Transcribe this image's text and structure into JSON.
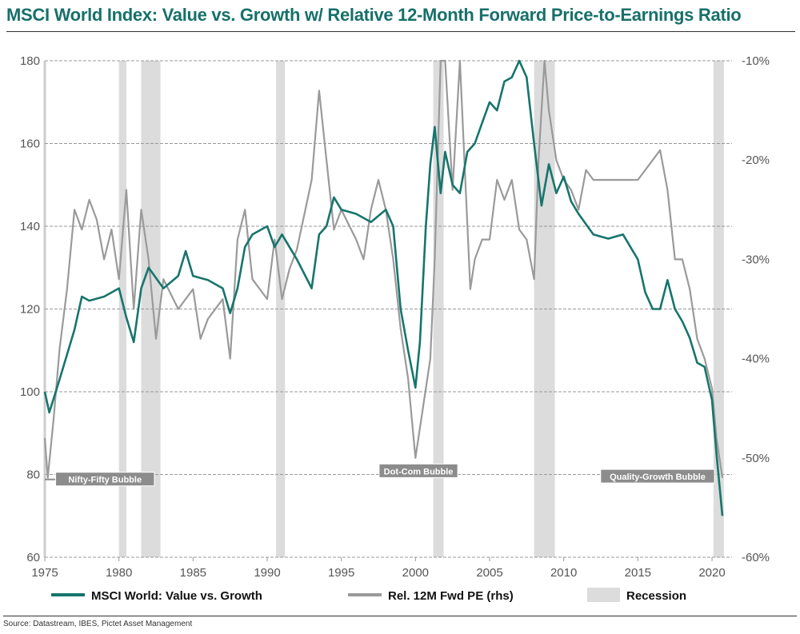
{
  "chart_data": {
    "type": "line",
    "title": "MSCI World Index: Value vs. Growth w/ Relative 12-Month Forward Price-to-Earnings Ratio",
    "source": "Source: Datastream, IBES, Pictet Asset Management",
    "xlim": [
      1975,
      2021.2
    ],
    "x_ticks": [
      "1975",
      "1980",
      "1985",
      "1990",
      "1995",
      "2000",
      "2005",
      "2010",
      "2015",
      "2020"
    ],
    "ylim_left": [
      60,
      180
    ],
    "y_ticks_left": [
      "60",
      "80",
      "100",
      "120",
      "140",
      "160",
      "180"
    ],
    "ylim_right": [
      -60,
      -10
    ],
    "y_ticks_right": [
      "-60%",
      "-50%",
      "-40%",
      "-30%",
      "-20%",
      "-10%"
    ],
    "grid": "horizontal dashed",
    "legend_placement": "bottom",
    "colors": {
      "value_vs_growth": "#17756d",
      "rel_pe": "#9a9a9a",
      "recession": "#dcdcdc",
      "annotation": "#8c8c8c",
      "title": "#17706a"
    },
    "recessions": [
      [
        1980.0,
        1980.5
      ],
      [
        1981.5,
        1982.8
      ],
      [
        1990.6,
        1991.2
      ],
      [
        2001.2,
        2001.9
      ],
      [
        2008.0,
        2009.4
      ],
      [
        2020.1,
        2020.8
      ]
    ],
    "annotations": [
      {
        "label": "Nifty-Fifty Bubble",
        "x": 1975.3,
        "y": 78.8
      },
      {
        "label": "Dot-Com Bubble",
        "x": 2000.2,
        "y": 80.8
      },
      {
        "label": "Quality-Growth Bubble",
        "x": 2020.6,
        "y": 79.5
      }
    ],
    "series": [
      {
        "name": "MSCI World: Value vs. Growth",
        "axis": "left",
        "x": [
          1975,
          1975.3,
          1976,
          1977,
          1977.5,
          1978,
          1979,
          1980,
          1980.5,
          1981,
          1981.5,
          1982,
          1983,
          1984,
          1984.5,
          1985,
          1986,
          1987,
          1987.5,
          1988,
          1988.5,
          1989,
          1990,
          1990.5,
          1991,
          1992,
          1993,
          1993.5,
          1994,
          1994.5,
          1995,
          1996,
          1997,
          1998,
          1998.5,
          1999,
          1999.5,
          2000,
          2000.3,
          2000.7,
          2001,
          2001.3,
          2001.7,
          2002,
          2002.5,
          2003,
          2003.5,
          2004,
          2004.5,
          2005,
          2005.5,
          2006,
          2006.5,
          2007,
          2007.5,
          2008,
          2008.5,
          2009,
          2009.5,
          2010,
          2010.5,
          2011,
          2012,
          2013,
          2014,
          2015,
          2015.5,
          2016,
          2016.5,
          2017,
          2017.5,
          2018,
          2018.5,
          2019,
          2019.5,
          2020,
          2020.3,
          2020.7
        ],
        "values": [
          100,
          95,
          103,
          115,
          123,
          122,
          123,
          125,
          118,
          112,
          125,
          130,
          125,
          128,
          134,
          128,
          127,
          125,
          119,
          125,
          135,
          138,
          140,
          135,
          138,
          132,
          125,
          138,
          140,
          147,
          144,
          143,
          141,
          144,
          140,
          120,
          110,
          101,
          112,
          140,
          155,
          164,
          148,
          158,
          150,
          148,
          158,
          160,
          165,
          170,
          168,
          175,
          176,
          180,
          176,
          160,
          145,
          155,
          148,
          152,
          146,
          143,
          138,
          137,
          138,
          132,
          124,
          120,
          120,
          127,
          120,
          117,
          113,
          107,
          106,
          98,
          85,
          70
        ]
      },
      {
        "name": "Rel. 12M Fwd PE (rhs)",
        "axis": "right",
        "x": [
          1975,
          1975.2,
          1975.6,
          1976,
          1976.5,
          1977,
          1977.5,
          1978,
          1978.5,
          1979,
          1979.5,
          1980,
          1980.5,
          1981,
          1981.5,
          1982,
          1982.5,
          1983,
          1984,
          1985,
          1985.5,
          1986,
          1987,
          1987.5,
          1988,
          1988.5,
          1989,
          1990,
          1990.5,
          1991,
          1991.5,
          1992,
          1993,
          1993.5,
          1994,
          1994.5,
          1995,
          1996,
          1996.5,
          1997,
          1997.5,
          1998,
          1998.5,
          1999,
          1999.5,
          2000,
          2000.5,
          2001,
          2001.3,
          2001.7,
          2002,
          2002.5,
          2003,
          2003.3,
          2003.7,
          2004,
          2004.5,
          2005,
          2005.5,
          2006,
          2006.5,
          2007,
          2007.5,
          2008,
          2008.3,
          2008.7,
          2009,
          2009.5,
          2010,
          2010.5,
          2011,
          2011.5,
          2012,
          2013,
          2014,
          2015,
          2016,
          2016.5,
          2017,
          2017.5,
          2018,
          2018.5,
          2019,
          2019.5,
          2020,
          2020.3,
          2020.7
        ],
        "values": [
          -48,
          -52,
          -46,
          -39,
          -33,
          -25,
          -27,
          -24,
          -26,
          -30,
          -27,
          -32,
          -23,
          -35,
          -25,
          -30,
          -38,
          -32,
          -35,
          -33,
          -38,
          -36,
          -34,
          -40,
          -28,
          -25,
          -32,
          -34,
          -28,
          -34,
          -31,
          -29,
          -22,
          -13,
          -20,
          -27,
          -25,
          -28,
          -30,
          -25,
          -22,
          -25,
          -30,
          -37,
          -42,
          -50,
          -45,
          -40,
          -30,
          -10,
          -10,
          -23,
          -10,
          -20,
          -33,
          -30,
          -28,
          -28,
          -22,
          -24,
          -22,
          -27,
          -28,
          -32,
          -20,
          -10,
          -15,
          -20,
          -22,
          -23,
          -25,
          -21,
          -22,
          -22,
          -22,
          -22,
          -20,
          -19,
          -23,
          -30,
          -30,
          -33,
          -38,
          -40,
          -43,
          -48,
          -52
        ]
      }
    ],
    "legend": {
      "value_vs_growth": "MSCI World: Value vs. Growth",
      "rel_pe": "Rel. 12M Fwd PE (rhs)",
      "recession": "Recession"
    }
  }
}
